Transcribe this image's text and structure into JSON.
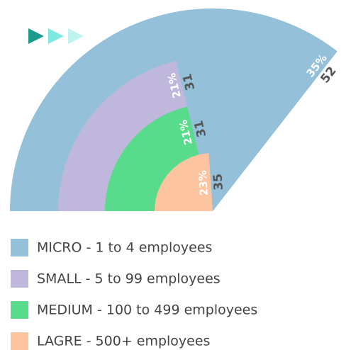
{
  "chart_data": {
    "type": "radial_bar",
    "categories": [
      "MICRO - 1 to 4 employees",
      "SMALL - 5 to 99 employees",
      "MEDIUM - 100 to 499 employees",
      "LAGRE - 500+ employees"
    ],
    "values": [
      52,
      31,
      31,
      35
    ],
    "shares": [
      35,
      21,
      21,
      23
    ],
    "share_labels": [
      "35%",
      "21%",
      "21%",
      "23%"
    ],
    "colors": [
      "#95c0d9",
      "#c0b8dc",
      "#58db8a",
      "#fdc4a0"
    ],
    "legend": "bottom"
  }
}
